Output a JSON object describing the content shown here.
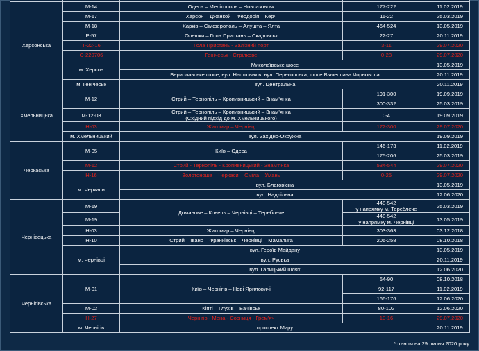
{
  "colors": {
    "background": "#0e2946",
    "cell": "#0b2440",
    "text": "#ffffff",
    "highlight": "#e3231d",
    "border": "#c9d2dc"
  },
  "table": {
    "rows": [
      {
        "cells": [
          {
            "text": "Херсонська",
            "rs": 9
          },
          {
            "text": "М-14"
          },
          {
            "text": "Одеса – Мелітополь – Новоазовськ"
          },
          {
            "text": "177-222"
          },
          {
            "text": "11.02.2019"
          }
        ]
      },
      {
        "cells": [
          {
            "text": "М-17"
          },
          {
            "text": "Херсон – Джанкой – Феодосія – Керч"
          },
          {
            "text": "11-22"
          },
          {
            "text": "25.03.2019"
          }
        ]
      },
      {
        "cells": [
          {
            "text": "М-18"
          },
          {
            "text": "Харків – Сімферополь – Алушта – Ялта"
          },
          {
            "text": "464-524"
          },
          {
            "text": "13.05.2019"
          }
        ]
      },
      {
        "cells": [
          {
            "text": "Р-57"
          },
          {
            "text": "Олешки – Гола Пристань – Скадовськ"
          },
          {
            "text": "22-27"
          },
          {
            "text": "20.11.2019"
          }
        ]
      },
      {
        "red": true,
        "cells": [
          {
            "text": "Т-22-16"
          },
          {
            "text": "Гола Пристань - Залізний порт"
          },
          {
            "text": "3-11"
          },
          {
            "text": "29.07.2020"
          }
        ]
      },
      {
        "red": true,
        "cells": [
          {
            "text": "О-220706"
          },
          {
            "text": "Генічеськ - Стрілкове"
          },
          {
            "text": "0-28"
          },
          {
            "text": "29.07.2020"
          }
        ]
      },
      {
        "cells": [
          {
            "text": "м. Херсон",
            "rs": 2
          },
          {
            "text": "Миколаївське шосе",
            "cs": 2
          },
          {
            "text": "13.05.2019"
          }
        ]
      },
      {
        "cells": [
          {
            "text": "Бериславське шосе, вул. Нафтовиків, вул. Перекопська, шосе В'ячеслава Чорновола",
            "cs": 2
          },
          {
            "text": "20.11.2019"
          }
        ]
      },
      {
        "cells": [
          {
            "text": "м. Генічеськ"
          },
          {
            "text": "вул. Центральна",
            "cs": 2
          },
          {
            "text": "20.11.2019"
          }
        ]
      },
      {
        "cells": [
          {
            "text": "Хмельницька",
            "rs": 5
          },
          {
            "text": "М-12",
            "rs": 2
          },
          {
            "text": "Стрий – Тернопіль – Кропивницький – Знам'янка",
            "rs": 2
          },
          {
            "text": "191-300"
          },
          {
            "text": "19.09.2019"
          }
        ]
      },
      {
        "cells": [
          {
            "text": "300-332"
          },
          {
            "text": "25.03.2019"
          }
        ]
      },
      {
        "cells": [
          {
            "text": "М-12-03"
          },
          {
            "text": "Стрий – Тернопіль – Кропивницький – Знам'янка\n(Східний підхід до м. Хмельницького)"
          },
          {
            "text": "0-4"
          },
          {
            "text": "19.09.2019"
          }
        ]
      },
      {
        "red": true,
        "cells": [
          {
            "text": "Н-03"
          },
          {
            "text": "Житомир – Чернівці"
          },
          {
            "text": "172-300"
          },
          {
            "text": "29.07.2020"
          }
        ]
      },
      {
        "cells": [
          {
            "text": "м. Хмельницький"
          },
          {
            "text": "вул. Західно-Окружна",
            "cs": 2
          },
          {
            "text": "19.09.2019"
          }
        ]
      },
      {
        "cells": [
          {
            "text": "Черкаська",
            "rs": 6
          },
          {
            "text": "М-05",
            "rs": 2
          },
          {
            "text": "Київ – Одеса",
            "rs": 2
          },
          {
            "text": "146-173"
          },
          {
            "text": "11.02.2019"
          }
        ]
      },
      {
        "cells": [
          {
            "text": "175-206"
          },
          {
            "text": "25.03.2019"
          }
        ]
      },
      {
        "red": true,
        "cells": [
          {
            "text": "М-12"
          },
          {
            "text": "Стрий - Тернопіль - Кропивницький - Знам'янка"
          },
          {
            "text": "534-544"
          },
          {
            "text": "29.07.2020"
          }
        ]
      },
      {
        "red": true,
        "cells": [
          {
            "text": "Н-16"
          },
          {
            "text": "Золотоноша – Черкаси – Сміла – Умань"
          },
          {
            "text": "0-25"
          },
          {
            "text": "29.07.2020"
          }
        ]
      },
      {
        "cells": [
          {
            "text": "м. Черкаси",
            "rs": 2
          },
          {
            "text": "вул. Благовісна",
            "cs": 2
          },
          {
            "text": "13.05.2019"
          }
        ]
      },
      {
        "cells": [
          {
            "text": "вул. Надлільна",
            "cs": 2
          },
          {
            "text": "12.06.2020"
          }
        ]
      },
      {
        "cells": [
          {
            "text": "Чернівецька",
            "rs": 7
          },
          {
            "text": "М-19"
          },
          {
            "text": "Доманове – Ковель – Чернівці – Тереблече",
            "rs": 2
          },
          {
            "text": "448-542\nу напрямку м. Тереблече"
          },
          {
            "text": "25.03.2019"
          }
        ]
      },
      {
        "cells": [
          {
            "text": "М-19"
          },
          {
            "text": "448-542\nу напрямку м. Чернівці"
          },
          {
            "text": "13.05.2019"
          }
        ]
      },
      {
        "cells": [
          {
            "text": "Н-03"
          },
          {
            "text": "Житомир – Чернівці"
          },
          {
            "text": "303-363"
          },
          {
            "text": "03.12.2018"
          }
        ]
      },
      {
        "cells": [
          {
            "text": "Н-10"
          },
          {
            "text": "Стрий – Івано – Франківськ – Чернівці – Мамалига"
          },
          {
            "text": "206-258"
          },
          {
            "text": "08.10.2018"
          }
        ]
      },
      {
        "cells": [
          {
            "text": "м. Чернівці",
            "rs": 3
          },
          {
            "text": "вул. Героїв Майдану",
            "cs": 2
          },
          {
            "text": "13.05.2019"
          }
        ]
      },
      {
        "cells": [
          {
            "text": "вул. Руська",
            "cs": 2
          },
          {
            "text": "20.11.2019"
          }
        ]
      },
      {
        "cells": [
          {
            "text": "вул. Галицький шлях",
            "cs": 2
          },
          {
            "text": "12.06.2020"
          }
        ]
      },
      {
        "cells": [
          {
            "text": "Чернігівська",
            "rs": 6
          },
          {
            "text": "М-01",
            "rs": 3
          },
          {
            "text": "Київ – Чернігів – Нові Яриловичі",
            "rs": 3
          },
          {
            "text": "64-90"
          },
          {
            "text": "08.10.2018"
          }
        ]
      },
      {
        "cells": [
          {
            "text": "92-117"
          },
          {
            "text": "11.02.2019"
          }
        ]
      },
      {
        "cells": [
          {
            "text": "166-176"
          },
          {
            "text": "12.06.2020"
          }
        ]
      },
      {
        "cells": [
          {
            "text": "М-02"
          },
          {
            "text": "Кіпті – Глухів – Бачівськ"
          },
          {
            "text": "80-102"
          },
          {
            "text": "12.06.2020"
          }
        ]
      },
      {
        "red": true,
        "cells": [
          {
            "text": "Н-27"
          },
          {
            "text": "Чернігів - Мена - Сосниця - Грем'яч"
          },
          {
            "text": "10-16"
          },
          {
            "text": "29.07.2020"
          }
        ]
      },
      {
        "cells": [
          {
            "text": "м. Чернігів"
          },
          {
            "text": "проспект Миру",
            "cs": 2
          },
          {
            "text": "20.11.2019"
          }
        ]
      }
    ]
  },
  "footnote": "*станом на 29 липня 2020 року"
}
